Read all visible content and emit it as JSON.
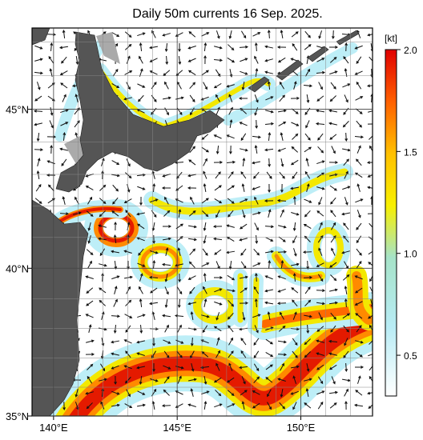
{
  "title": "Daily 50m currents 16 Sep. 2025.",
  "map": {
    "lon_range": [
      139.13,
      152.9
    ],
    "lat_range": [
      35,
      47.4
    ],
    "grid_step": 1,
    "lon_ticks": [
      {
        "value": 140,
        "label": "140°E"
      },
      {
        "value": 145,
        "label": "145°E"
      },
      {
        "value": 150,
        "label": "150°E"
      }
    ],
    "lat_ticks": [
      {
        "value": 35,
        "label": "35°N"
      },
      {
        "value": 40,
        "label": "40°N"
      },
      {
        "value": 45,
        "label": "45°N"
      }
    ]
  },
  "colorbar": {
    "unit": "[kt]",
    "range": [
      0.3,
      2.0
    ],
    "ticks": [
      0.5,
      {
        "value": 1.0,
        "label": "1.0"
      },
      1.5,
      {
        "value": 2.0,
        "label": "2.0"
      }
    ]
  }
}
